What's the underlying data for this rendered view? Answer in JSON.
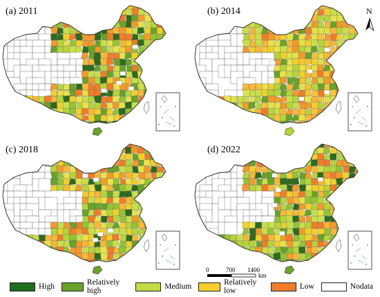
{
  "panels": [
    {
      "label": "(a) 2011",
      "palette": [
        "#2f6b1c",
        "#6aa22a",
        "#b6d43b",
        "#f2d02c",
        "#ef7d2a",
        "#f7b73a",
        "#c9df4a",
        "#94c335",
        "#e9e24a",
        "#f39b2a"
      ]
    },
    {
      "label": "(b) 2014",
      "palette": [
        "#6aa22a",
        "#b6d43b",
        "#f2d02c",
        "#ef7d2a",
        "#f7b73a",
        "#c9df4a",
        "#e9e24a",
        "#f39b2a",
        "#dfe34a",
        "#f5c43a"
      ]
    },
    {
      "label": "(c) 2018",
      "palette": [
        "#2f6b1c",
        "#6aa22a",
        "#b6d43b",
        "#f2d02c",
        "#ef7d2a",
        "#f7b73a",
        "#c9df4a",
        "#94c335",
        "#e9e24a",
        "#f39b2a"
      ]
    },
    {
      "label": "(d) 2022",
      "palette": [
        "#2f6b1c",
        "#6aa22a",
        "#b6d43b",
        "#f2d02c",
        "#ef7d2a",
        "#f7b73a",
        "#c9df4a",
        "#94c335",
        "#e9e24a",
        "#f39b2a"
      ]
    }
  ],
  "north_arrow": "N",
  "scale_bar": {
    "ticks": [
      "0",
      "700",
      "1400"
    ],
    "unit": "km"
  },
  "legend": [
    {
      "label": "High",
      "color": "#1f6e1f"
    },
    {
      "label": "Relatively high",
      "color": "#6aa22a"
    },
    {
      "label": "Medium",
      "color": "#c2dc45"
    },
    {
      "label": "Relatively low",
      "color": "#f7cf2c"
    },
    {
      "label": "Low",
      "color": "#ef7d2a"
    },
    {
      "label": "Nodata",
      "color": "#ffffff"
    }
  ]
}
